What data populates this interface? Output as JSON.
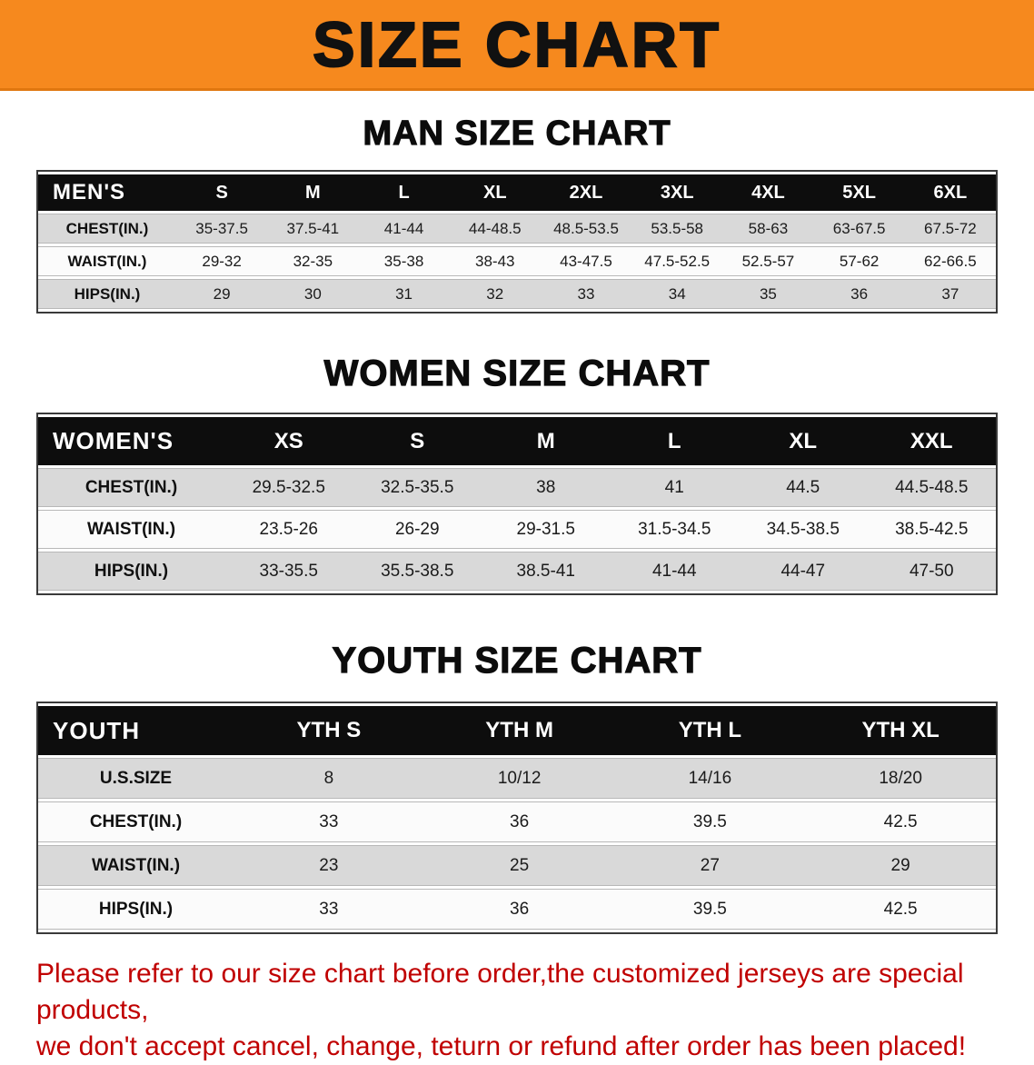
{
  "banner": {
    "title": "SIZE CHART"
  },
  "colors": {
    "banner_bg": "#f6891e",
    "table_header_bg": "#0d0d0d",
    "row_shaded": "#d9d9d9",
    "row_plain": "#fbfbfb",
    "disclaimer_text": "#c00000"
  },
  "sections": [
    {
      "heading": "MAN SIZE CHART",
      "table": {
        "label": "MEN'S",
        "columns": [
          "S",
          "M",
          "L",
          "XL",
          "2XL",
          "3XL",
          "4XL",
          "5XL",
          "6XL"
        ],
        "rows": [
          {
            "label": "CHEST(IN.)",
            "values": [
              "35-37.5",
              "37.5-41",
              "41-44",
              "44-48.5",
              "48.5-53.5",
              "53.5-58",
              "58-63",
              "63-67.5",
              "67.5-72"
            ]
          },
          {
            "label": "WAIST(IN.)",
            "values": [
              "29-32",
              "32-35",
              "35-38",
              "38-43",
              "43-47.5",
              "47.5-52.5",
              "52.5-57",
              "57-62",
              "62-66.5"
            ]
          },
          {
            "label": "HIPS(IN.)",
            "values": [
              "29",
              "30",
              "31",
              "32",
              "33",
              "34",
              "35",
              "36",
              "37"
            ]
          }
        ]
      }
    },
    {
      "heading": "WOMEN SIZE CHART",
      "table": {
        "label": "WOMEN'S",
        "columns": [
          "XS",
          "S",
          "M",
          "L",
          "XL",
          "XXL"
        ],
        "rows": [
          {
            "label": "CHEST(IN.)",
            "values": [
              "29.5-32.5",
              "32.5-35.5",
              "38",
              "41",
              "44.5",
              "44.5-48.5"
            ]
          },
          {
            "label": "WAIST(IN.)",
            "values": [
              "23.5-26",
              "26-29",
              "29-31.5",
              "31.5-34.5",
              "34.5-38.5",
              "38.5-42.5"
            ]
          },
          {
            "label": "HIPS(IN.)",
            "values": [
              "33-35.5",
              "35.5-38.5",
              "38.5-41",
              "41-44",
              "44-47",
              "47-50"
            ]
          }
        ]
      }
    },
    {
      "heading": "YOUTH SIZE CHART",
      "table": {
        "label": "YOUTH",
        "columns": [
          "YTH S",
          "YTH M",
          "YTH L",
          "YTH XL"
        ],
        "rows": [
          {
            "label": "U.S.SIZE",
            "values": [
              "8",
              "10/12",
              "14/16",
              "18/20"
            ]
          },
          {
            "label": "CHEST(IN.)",
            "values": [
              "33",
              "36",
              "39.5",
              "42.5"
            ]
          },
          {
            "label": "WAIST(IN.)",
            "values": [
              "23",
              "25",
              "27",
              "29"
            ]
          },
          {
            "label": "HIPS(IN.)",
            "values": [
              "33",
              "36",
              "39.5",
              "42.5"
            ]
          }
        ]
      }
    }
  ],
  "disclaimer": {
    "line1": "Please refer to our size chart before order,the customized jerseys are special products,",
    "line2": "we don't accept cancel, change, teturn or refund after order has been placed!"
  }
}
